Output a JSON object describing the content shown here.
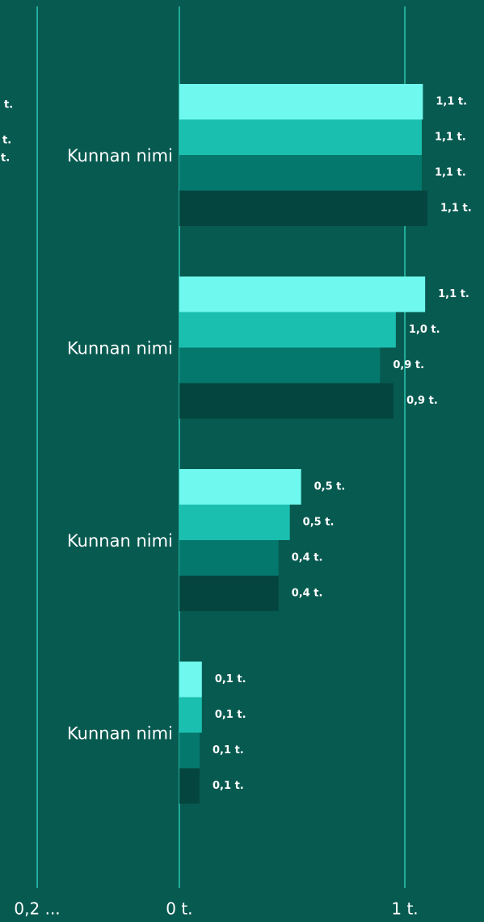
{
  "chart_data": {
    "type": "bar",
    "orientation": "horizontal",
    "categories": [
      "Kunnan nimi",
      "Kunnan nimi",
      "Kunnan nimi",
      "Kunnan nimi"
    ],
    "series": [
      {
        "color": "#6ff9ee",
        "values": [
          1.08,
          1.09,
          0.54,
          0.1
        ],
        "value_labels": [
          "1,1 t.",
          "1,1 t.",
          "0,5 t.",
          "0,1 t."
        ]
      },
      {
        "color": "#1bbfb0",
        "values": [
          1.075,
          0.96,
          0.49,
          0.1
        ],
        "value_labels": [
          "1,1 t.",
          "1,0 t.",
          "0,5 t.",
          "0,1 t."
        ]
      },
      {
        "color": "#04786c",
        "values": [
          1.075,
          0.89,
          0.44,
          0.09
        ],
        "value_labels": [
          "1,1 t.",
          "0,9 t.",
          "0,4 t.",
          "0,1 t."
        ]
      },
      {
        "color": "#04463f",
        "values": [
          1.1,
          0.95,
          0.44,
          0.09
        ],
        "value_labels": [
          "1,1 t.",
          "0,9 t.",
          "0,4 t.",
          "0,1 t."
        ]
      }
    ],
    "xlim": [
      -0.795,
      1.351
    ],
    "xticks": [
      {
        "value": -0.63,
        "label": "0,2 ..."
      },
      {
        "value": 0,
        "label": "0 t."
      },
      {
        "value": 1,
        "label": "1 t."
      }
    ],
    "grid": true,
    "annotations": [
      "t.",
      "t.",
      "t."
    ]
  }
}
